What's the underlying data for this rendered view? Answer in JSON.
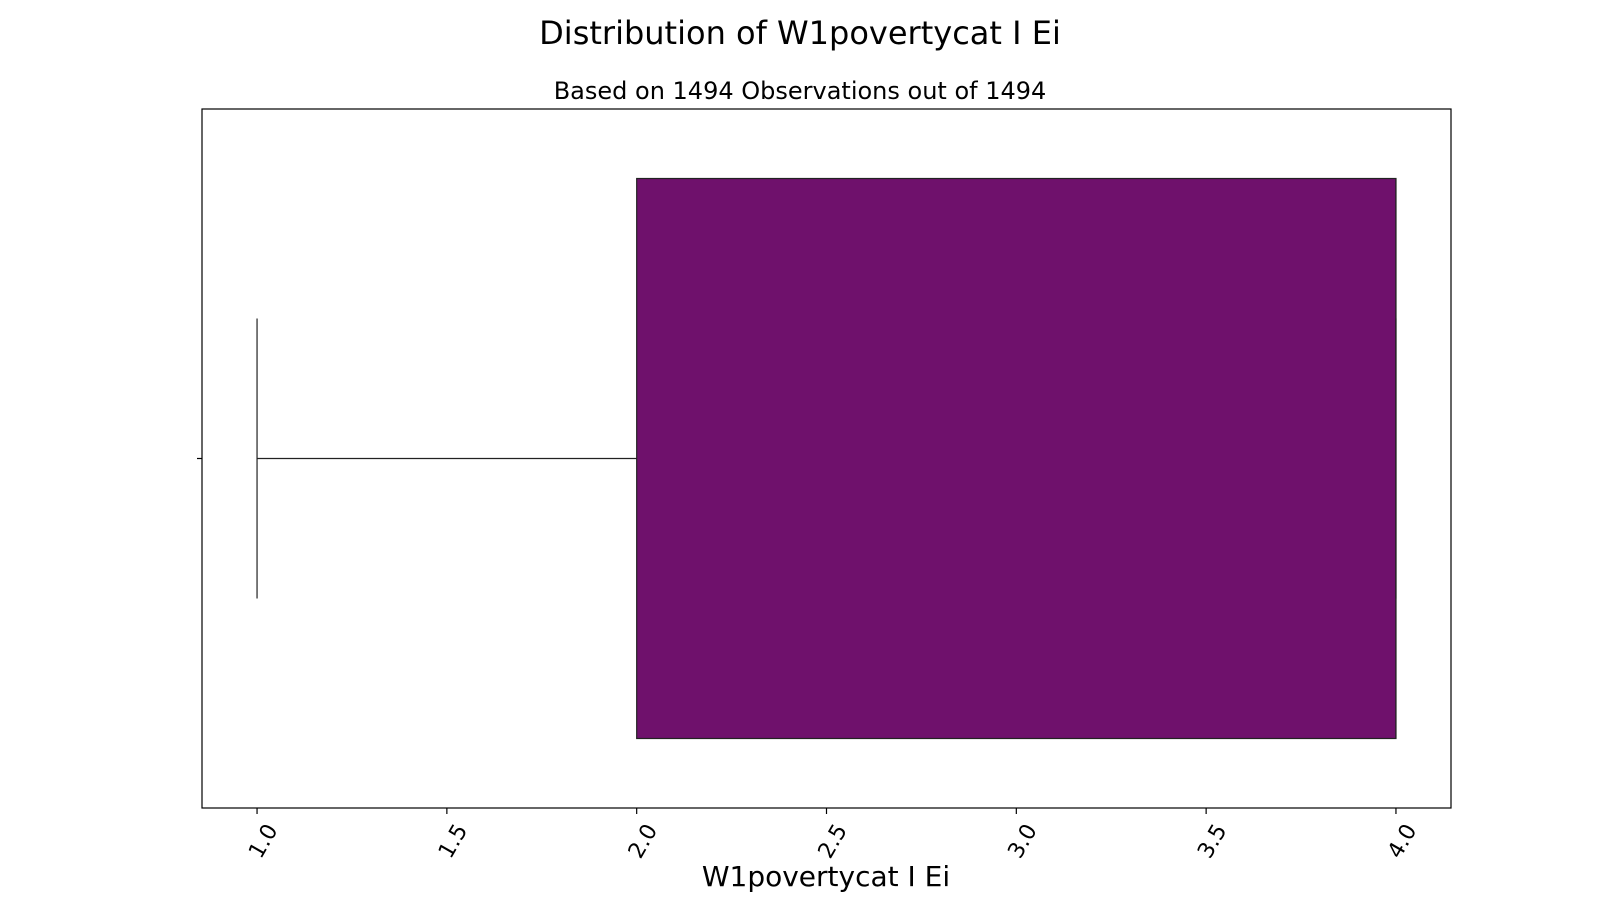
{
  "chart_data": {
    "type": "box",
    "title": "Distribution of W1povertycat I Ei",
    "subtitle": "Based on 1494 Observations out of 1494",
    "xlabel": "W1povertycat I Ei",
    "ylabel": "",
    "xlim": [
      0.855,
      4.145
    ],
    "xticks": [
      1.0,
      1.5,
      2.0,
      2.5,
      3.0,
      3.5,
      4.0
    ],
    "xtick_labels": [
      "1.0",
      "1.5",
      "2.0",
      "2.5",
      "3.0",
      "3.5",
      "4.0"
    ],
    "orientation": "horizontal",
    "series": [
      {
        "whisker_low": 1.0,
        "q1": 2.0,
        "median": 4.0,
        "q3": 4.0,
        "whisker_high": 4.0
      }
    ],
    "grid": false,
    "colors": {
      "box_fill": "#6f116c",
      "line": "#222222"
    }
  }
}
